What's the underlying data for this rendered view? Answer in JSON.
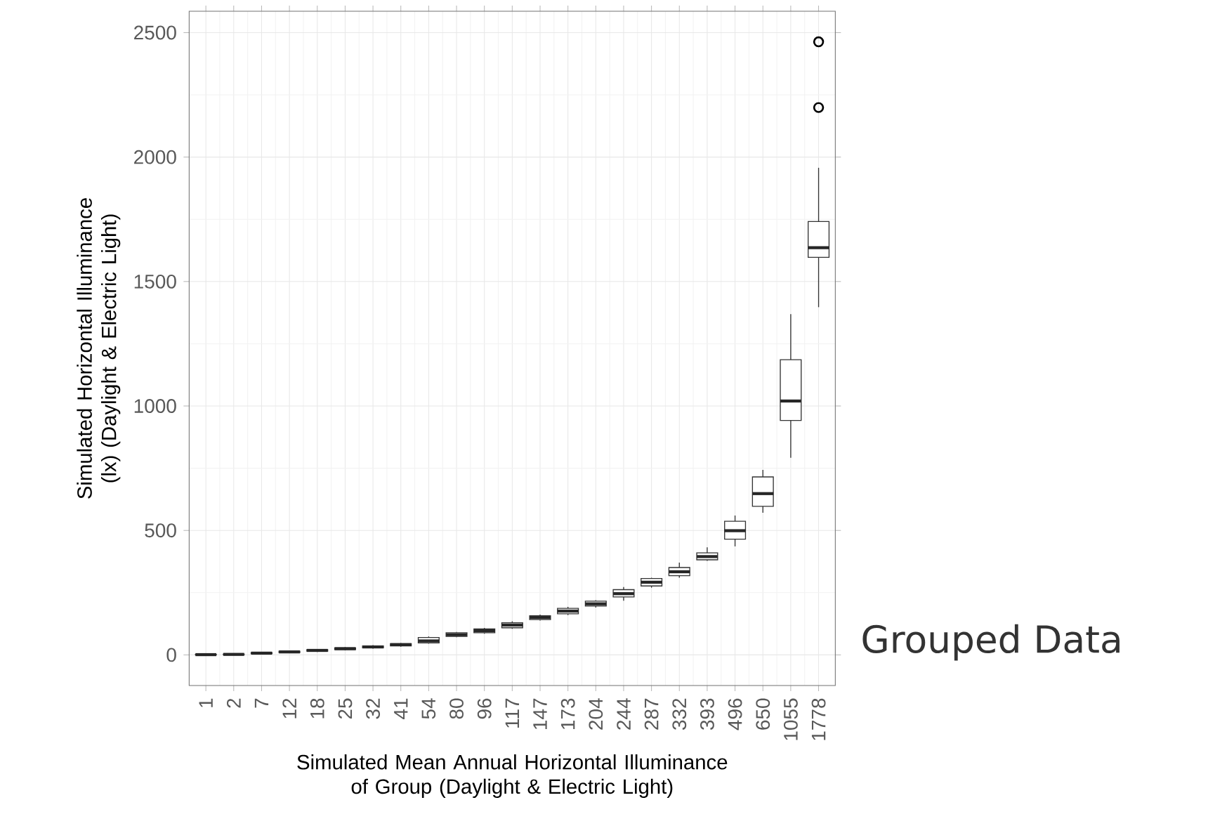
{
  "chart_data": {
    "type": "box",
    "xlabel": "Simulated Mean Annual Horizontal Illuminance of Group (Daylight & Electric Light)",
    "ylabel": "Simulated Horizontal Illuminance (lx) (Daylight & Electric Light)",
    "annotations": [
      "Grouped Data"
    ],
    "categories": [
      "1",
      "2",
      "7",
      "12",
      "18",
      "25",
      "32",
      "41",
      "54",
      "80",
      "96",
      "117",
      "147",
      "173",
      "204",
      "244",
      "287",
      "332",
      "393",
      "496",
      "650",
      "1055",
      "1778"
    ],
    "boxes": [
      {
        "low": 0,
        "q1": 0,
        "median": 1,
        "q3": 2,
        "high": 3
      },
      {
        "low": 0,
        "q1": 1,
        "median": 2,
        "q3": 3,
        "high": 4
      },
      {
        "low": 3,
        "q1": 5,
        "median": 7,
        "q3": 9,
        "high": 11
      },
      {
        "low": 7,
        "q1": 9,
        "median": 12,
        "q3": 15,
        "high": 17
      },
      {
        "low": 12,
        "q1": 15,
        "median": 18,
        "q3": 21,
        "high": 23
      },
      {
        "low": 18,
        "q1": 21,
        "median": 25,
        "q3": 28,
        "high": 31
      },
      {
        "low": 25,
        "q1": 28,
        "median": 32,
        "q3": 36,
        "high": 39
      },
      {
        "low": 33,
        "q1": 36,
        "median": 41,
        "q3": 45,
        "high": 48
      },
      {
        "low": 45,
        "q1": 48,
        "median": 56,
        "q3": 70,
        "high": 74
      },
      {
        "low": 71,
        "q1": 74,
        "median": 81,
        "q3": 89,
        "high": 92
      },
      {
        "low": 85,
        "q1": 89,
        "median": 97,
        "q3": 104,
        "high": 108
      },
      {
        "low": 105,
        "q1": 109,
        "median": 120,
        "q3": 129,
        "high": 135
      },
      {
        "low": 138,
        "q1": 142,
        "median": 150,
        "q3": 157,
        "high": 162
      },
      {
        "low": 160,
        "q1": 165,
        "median": 176,
        "q3": 187,
        "high": 193
      },
      {
        "low": 190,
        "q1": 196,
        "median": 205,
        "q3": 216,
        "high": 220
      },
      {
        "low": 218,
        "q1": 233,
        "median": 246,
        "q3": 262,
        "high": 273
      },
      {
        "low": 270,
        "q1": 277,
        "median": 292,
        "q3": 307,
        "high": 310
      },
      {
        "low": 310,
        "q1": 318,
        "median": 334,
        "q3": 351,
        "high": 371
      },
      {
        "low": 378,
        "q1": 382,
        "median": 395,
        "q3": 410,
        "high": 432
      },
      {
        "low": 436,
        "q1": 465,
        "median": 499,
        "q3": 537,
        "high": 560
      },
      {
        "low": 571,
        "q1": 597,
        "median": 648,
        "q3": 715,
        "high": 743
      },
      {
        "low": 792,
        "q1": 942,
        "median": 1020,
        "q3": 1186,
        "high": 1369
      },
      {
        "low": 1397,
        "q1": 1597,
        "median": 1636,
        "q3": 1741,
        "high": 1957,
        "outliers": [
          2199,
          2463
        ]
      }
    ],
    "ylim": [
      -123,
      2586
    ],
    "yticks": [
      0,
      500,
      1000,
      1500,
      2000,
      2500
    ],
    "grid": true
  }
}
